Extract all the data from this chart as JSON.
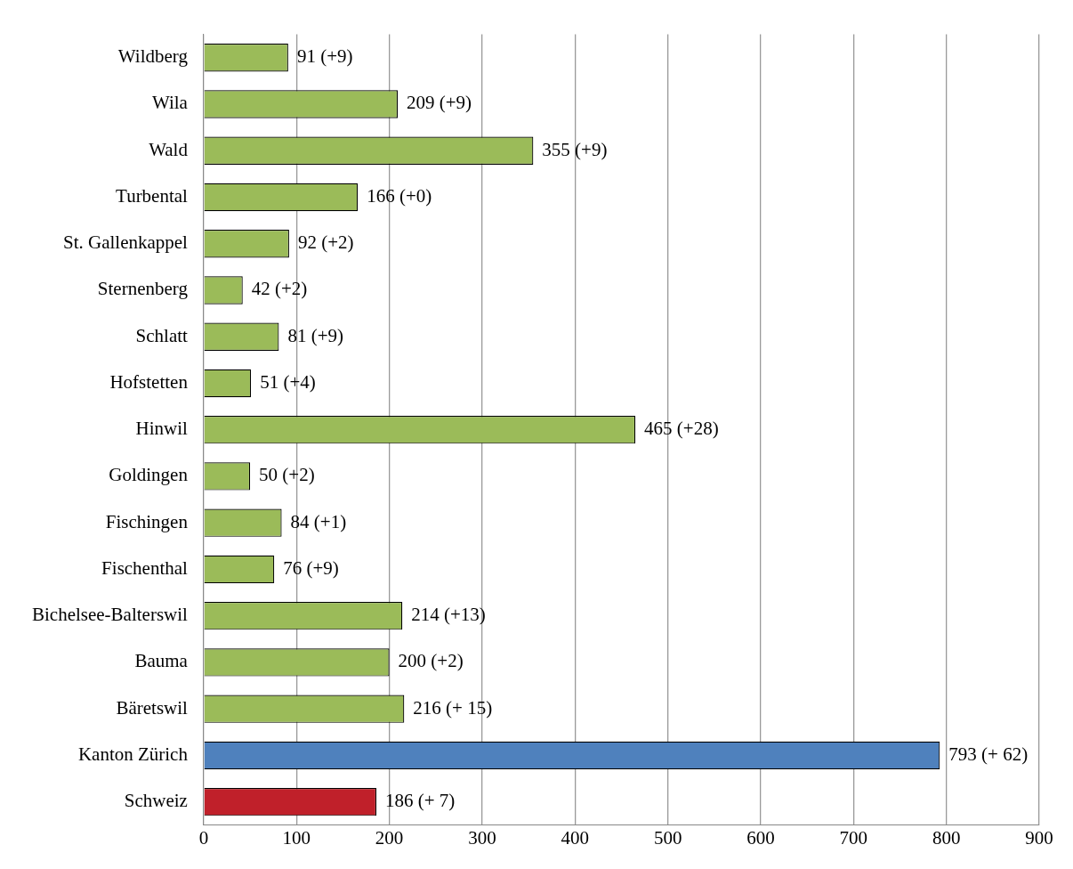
{
  "chart_data": {
    "type": "bar",
    "orientation": "horizontal",
    "categories": [
      "Wildberg",
      "Wila",
      "Wald",
      "Turbental",
      "St. Gallenkappel",
      "Sternenberg",
      "Schlatt",
      "Hofstetten",
      "Hinwil",
      "Goldingen",
      "Fischingen",
      "Fischenthal",
      "Bichelsee-Balterswil",
      "Bauma",
      "Bäretswil",
      "Kanton Zürich",
      "Schweiz"
    ],
    "values": [
      91,
      209,
      355,
      166,
      92,
      42,
      81,
      51,
      465,
      50,
      84,
      76,
      214,
      200,
      216,
      793,
      186
    ],
    "colors": [
      "#9bbb59",
      "#9bbb59",
      "#9bbb59",
      "#9bbb59",
      "#9bbb59",
      "#9bbb59",
      "#9bbb59",
      "#9bbb59",
      "#9bbb59",
      "#9bbb59",
      "#9bbb59",
      "#9bbb59",
      "#9bbb59",
      "#9bbb59",
      "#9bbb59",
      "#4f81bd",
      "#c0202a"
    ],
    "value_labels": [
      "91 (+9)",
      "209 (+9)",
      "355 (+9)",
      "166 (+0)",
      "92 (+2)",
      "42 (+2)",
      "81 (+9)",
      "51 (+4)",
      "465 (+28)",
      "50 (+2)",
      "84 (+1)",
      "76 (+9)",
      "214 (+13)",
      "200 (+2)",
      "216 (+ 15)",
      "793 (+ 62)",
      "186 (+ 7)"
    ],
    "xlim": [
      0,
      900
    ],
    "xticks": [
      0,
      100,
      200,
      300,
      400,
      500,
      600,
      700,
      800,
      900
    ],
    "grid": "x",
    "legend": false
  }
}
